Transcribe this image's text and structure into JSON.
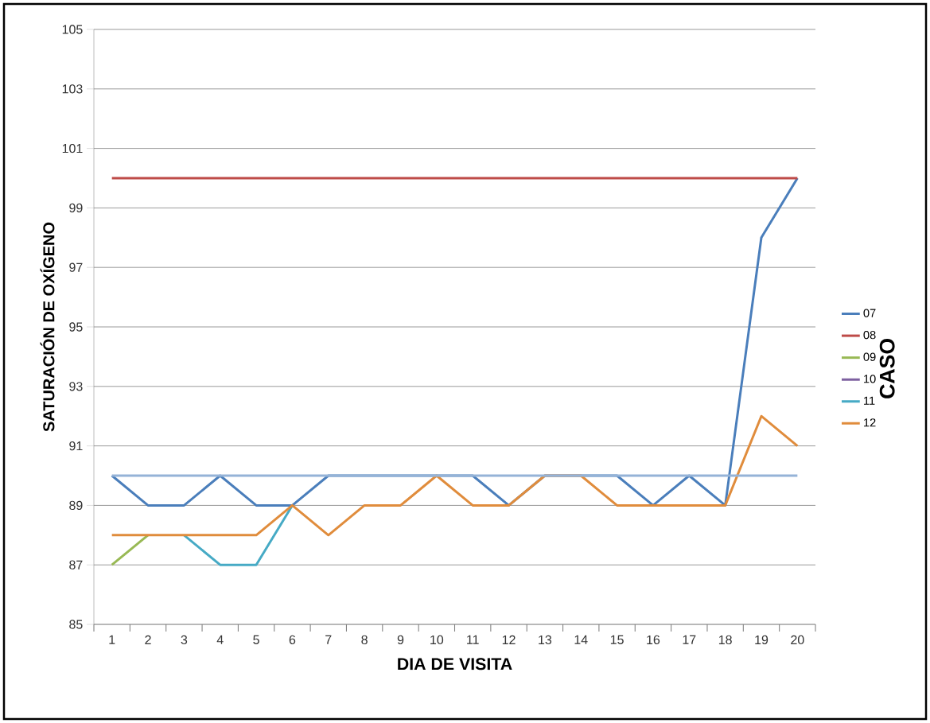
{
  "chart_data": {
    "type": "line",
    "xlabel": "DIA DE VISITA",
    "ylabel": "SATURACIÓN DE OXÍGENO",
    "legend_title": "CASO",
    "categories": [
      "1",
      "2",
      "3",
      "4",
      "5",
      "6",
      "7",
      "8",
      "9",
      "10",
      "11",
      "12",
      "13",
      "14",
      "15",
      "16",
      "17",
      "18",
      "19",
      "20"
    ],
    "ylim": [
      85,
      105
    ],
    "yticks": [
      85,
      87,
      89,
      91,
      93,
      95,
      97,
      99,
      101,
      103,
      105
    ],
    "grid": "y",
    "legend": "right",
    "series": [
      {
        "name": "07",
        "color": "#4a7ebb",
        "values": [
          90,
          89,
          89,
          90,
          89,
          89,
          90,
          90,
          90,
          90,
          90,
          89,
          90,
          90,
          90,
          89,
          90,
          89,
          98,
          100
        ]
      },
      {
        "name": "08",
        "color": "#be4b48",
        "values": [
          100,
          100,
          100,
          100,
          100,
          100,
          100,
          100,
          100,
          100,
          100,
          100,
          100,
          100,
          100,
          100,
          100,
          100,
          100,
          100
        ]
      },
      {
        "name": "09",
        "color": "#98b954",
        "values": [
          87,
          88,
          null,
          null,
          null,
          null,
          null,
          null,
          null,
          null,
          null,
          null,
          null,
          null,
          null,
          null,
          null,
          null,
          null,
          null
        ]
      },
      {
        "name": "10",
        "color": "#7d60a0",
        "values": [
          null,
          null,
          null,
          null,
          null,
          null,
          null,
          null,
          null,
          null,
          null,
          null,
          null,
          null,
          null,
          null,
          null,
          null,
          null,
          null
        ]
      },
      {
        "name": "11",
        "color": "#46aac5",
        "values": [
          null,
          null,
          88,
          87,
          87,
          89,
          null,
          null,
          null,
          null,
          null,
          null,
          null,
          null,
          null,
          null,
          null,
          null,
          null,
          null
        ]
      },
      {
        "name": "12",
        "color": "#e08c3c",
        "values": [
          88,
          88,
          88,
          88,
          88,
          89,
          88,
          89,
          89,
          90,
          89,
          89,
          90,
          90,
          89,
          89,
          89,
          89,
          92,
          91
        ]
      },
      {
        "color": "#95b3d7",
        "values": [
          90,
          90,
          90,
          90,
          90,
          90,
          90,
          90,
          90,
          90,
          90,
          90,
          90,
          90,
          90,
          90,
          90,
          90,
          90,
          90
        ]
      }
    ]
  }
}
